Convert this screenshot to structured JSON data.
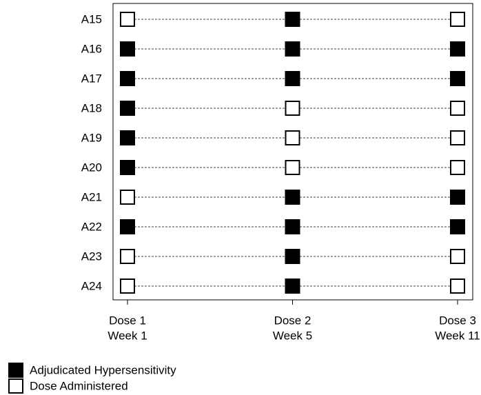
{
  "chart_data": {
    "type": "matrix",
    "rows": [
      "A15",
      "A16",
      "A17",
      "A18",
      "A19",
      "A20",
      "A21",
      "A22",
      "A23",
      "A24"
    ],
    "columns": [
      [
        "Dose 1",
        "Week 1"
      ],
      [
        "Dose 2",
        "Week 5"
      ],
      [
        "Dose 3",
        "Week 11"
      ]
    ],
    "series": [
      {
        "name": "Dose Administered",
        "color": "#ffffff"
      },
      {
        "name": "Adjudicated Hypersensitivity",
        "color": "#000000"
      }
    ],
    "values": [
      [
        0,
        1,
        0
      ],
      [
        1,
        1,
        1
      ],
      [
        1,
        1,
        1
      ],
      [
        1,
        0,
        0
      ],
      [
        1,
        0,
        0
      ],
      [
        1,
        0,
        0
      ],
      [
        0,
        1,
        1
      ],
      [
        1,
        1,
        1
      ],
      [
        0,
        1,
        0
      ],
      [
        0,
        1,
        0
      ]
    ]
  }
}
